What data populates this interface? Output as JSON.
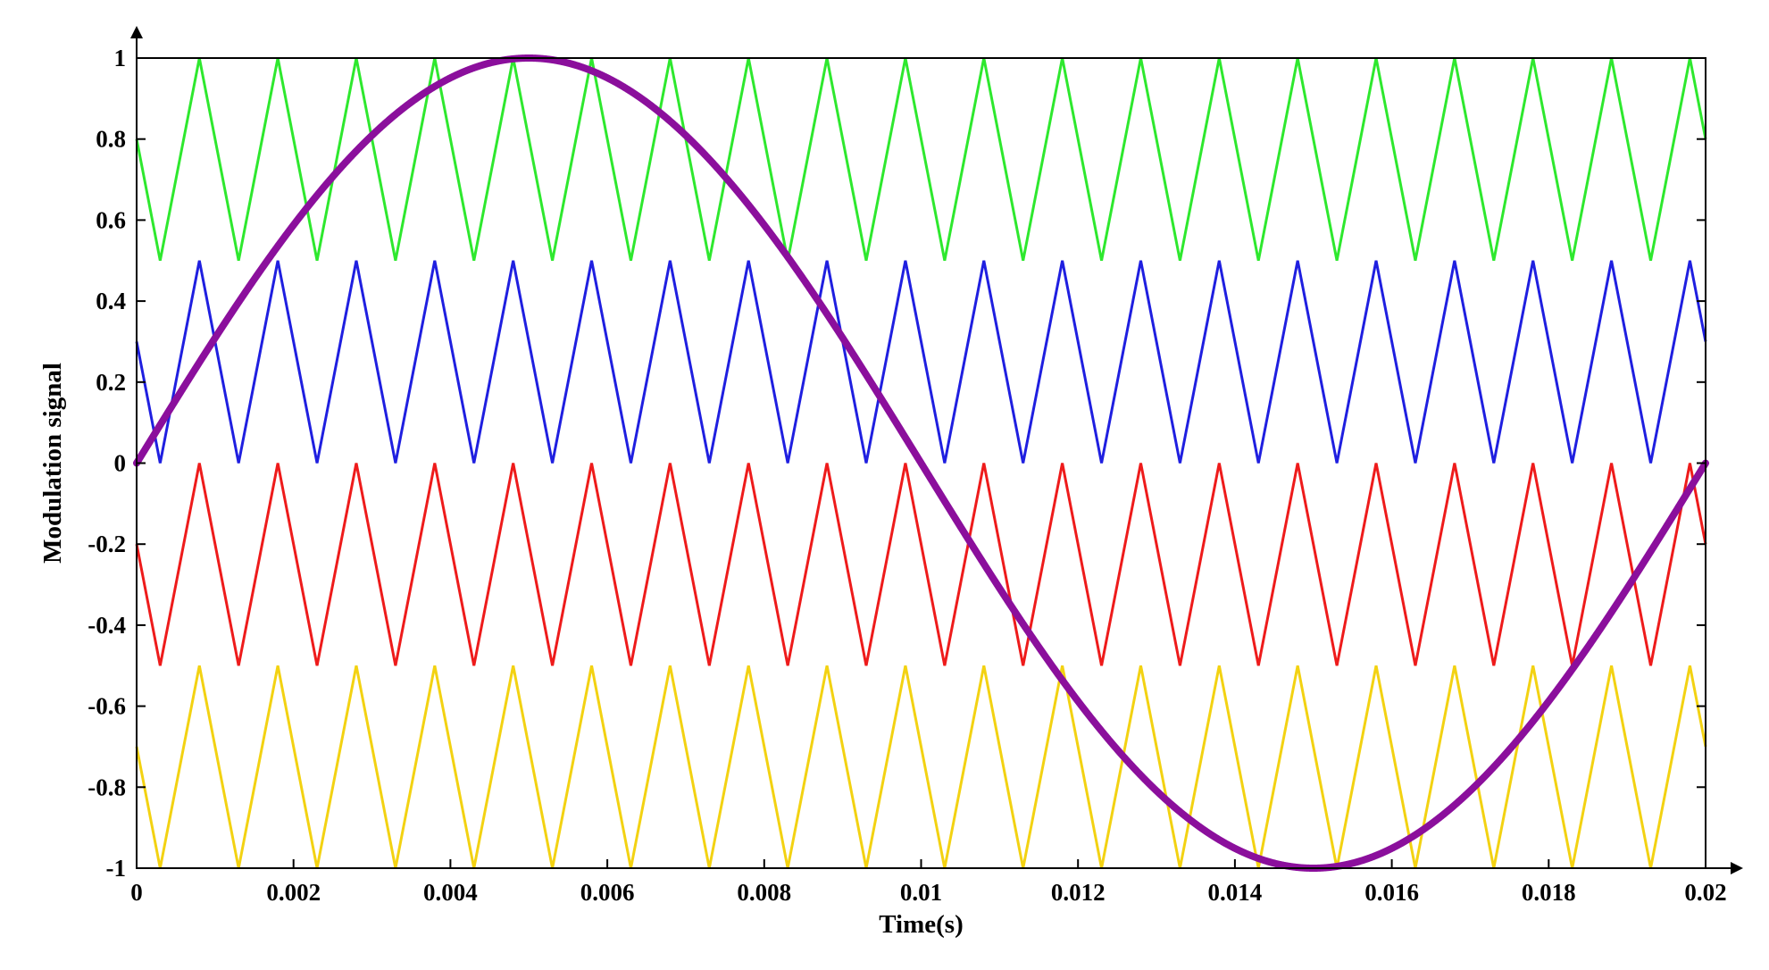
{
  "chart_data": {
    "type": "line",
    "xlabel": "Time(s)",
    "ylabel": "Modulation signal",
    "xlim": [
      0,
      0.02
    ],
    "ylim": [
      -1,
      1
    ],
    "x_ticks": [
      "0",
      "0.002",
      "0.004",
      "0.006",
      "0.008",
      "0.01",
      "0.012",
      "0.014",
      "0.016",
      "0.018",
      "0.02"
    ],
    "y_ticks": [
      "1",
      "0.8",
      "0.6",
      "0.4",
      "0.2",
      "0",
      "-0.2",
      "-0.4",
      "-0.6",
      "-0.8",
      "-1"
    ],
    "grid": false,
    "legend": false,
    "carrier_frequency_hz": 1000,
    "carrier_amplitude_range": 0.5,
    "carriers": [
      {
        "color": "#2ee82e",
        "min": 0.5,
        "max": 1.0,
        "value_at_t0": 0.8
      },
      {
        "color": "#1f1fe0",
        "min": 0.0,
        "max": 0.5,
        "value_at_t0": 0.3
      },
      {
        "color": "#ee1b1b",
        "min": -0.5,
        "max": 0.0,
        "value_at_t0": -0.2
      },
      {
        "color": "#f3d212",
        "min": -1.0,
        "max": -0.5,
        "value_at_t0": -0.7
      }
    ],
    "reference": {
      "color": "#8b0f9c",
      "shape": "sine",
      "amplitude": 1.0,
      "frequency_hz": 50,
      "phase": 0
    }
  }
}
